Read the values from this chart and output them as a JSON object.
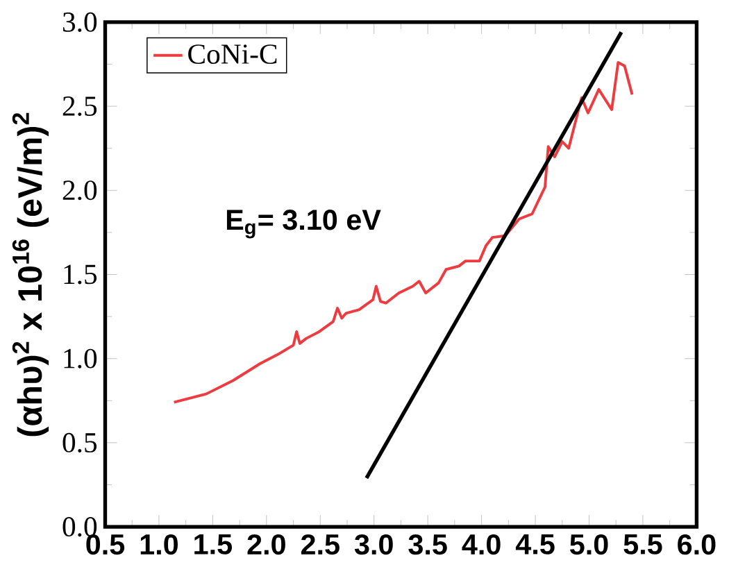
{
  "chart_data": {
    "type": "line",
    "xlabel": null,
    "ylabel": "(αhυ)$^{2}$ x 10$^{16}$ (eV/m)$^{2}$",
    "annotations": [
      "E$_{g}$= 3.10 eV"
    ],
    "xlim": [
      0.5,
      6.0
    ],
    "xticks": [
      0.5,
      {
        "value": 1,
        "label": "1.0"
      },
      1.5,
      {
        "value": 2,
        "label": "2.0"
      },
      2.5,
      {
        "value": 3,
        "label": "3.0"
      },
      3.5,
      {
        "value": 4,
        "label": "4.0"
      },
      4.5,
      {
        "value": 5,
        "label": "5.0"
      },
      5.5,
      {
        "value": 6,
        "label": "6.0"
      }
    ],
    "ylim": [
      0.0,
      3.0
    ],
    "yticks": [
      {
        "value": 0,
        "label": "0.0"
      },
      0.5,
      {
        "value": 1,
        "label": "1.0"
      },
      1.5,
      {
        "value": 2,
        "label": "2.0"
      },
      2.5,
      {
        "value": 3,
        "label": "3.0"
      }
    ],
    "legend": "top left",
    "marker": "none",
    "line_style": "solid",
    "series": [
      {
        "name": "CoNi-C",
        "color": "#ee3b3f",
        "x": [
          1.14,
          1.44,
          1.69,
          1.94,
          2.12,
          2.25,
          2.28,
          2.31,
          2.37,
          2.49,
          2.62,
          2.66,
          2.7,
          2.74,
          2.86,
          2.99,
          3.02,
          3.06,
          3.11,
          3.23,
          3.36,
          3.42,
          3.48,
          3.6,
          3.67,
          3.79,
          3.85,
          3.98,
          4.04,
          4.1,
          4.22,
          4.35,
          4.47,
          4.59,
          4.62,
          4.68,
          4.75,
          4.81,
          4.93,
          4.99,
          5.09,
          5.21,
          5.27,
          5.33,
          5.4
        ],
        "values": [
          0.74,
          0.79,
          0.87,
          0.97,
          1.03,
          1.08,
          1.16,
          1.09,
          1.12,
          1.16,
          1.22,
          1.3,
          1.24,
          1.27,
          1.29,
          1.35,
          1.43,
          1.34,
          1.33,
          1.39,
          1.43,
          1.46,
          1.39,
          1.45,
          1.53,
          1.55,
          1.58,
          1.58,
          1.67,
          1.72,
          1.73,
          1.83,
          1.86,
          2.02,
          2.26,
          2.2,
          2.29,
          2.25,
          2.55,
          2.46,
          2.6,
          2.48,
          2.76,
          2.74,
          2.57
        ]
      },
      {
        "type": "line",
        "color": "#000000",
        "x": [
          2.93,
          5.3
        ],
        "values": [
          0.29,
          2.94
        ]
      }
    ]
  }
}
